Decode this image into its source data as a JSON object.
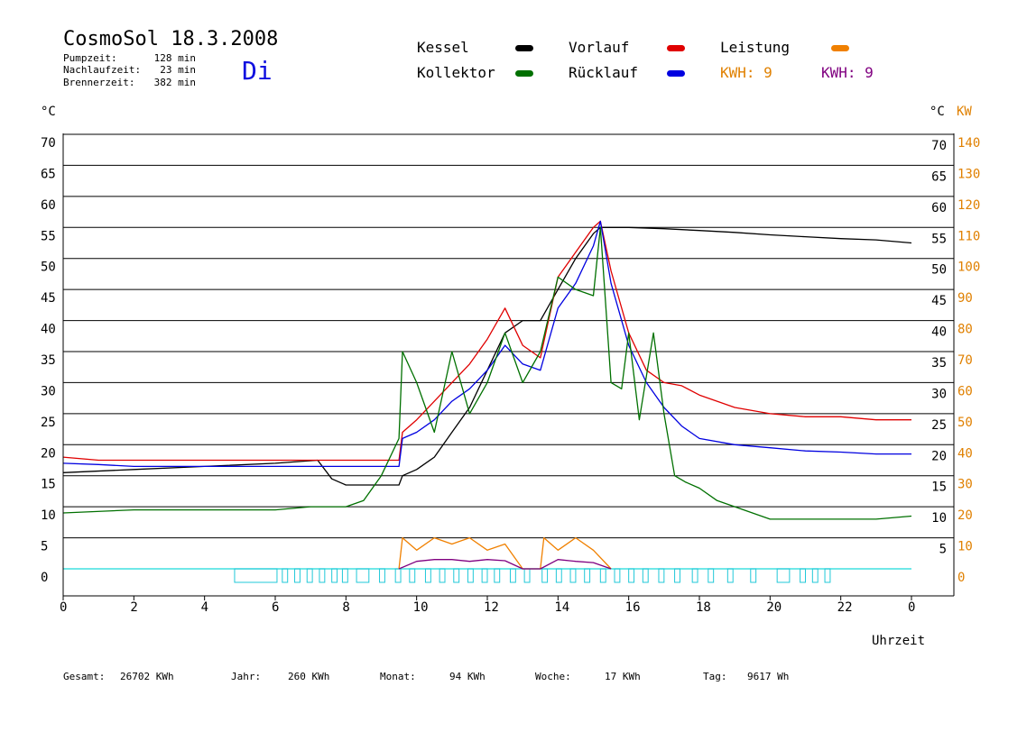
{
  "header": {
    "title": "CosmoSol 18.3.2008",
    "day": "Di",
    "stats": [
      {
        "label": "Pumpzeit:",
        "value": "128 min"
      },
      {
        "label": "Nachlaufzeit:",
        "value": "23 min"
      },
      {
        "label": "Brennerzeit:",
        "value": "382 min"
      }
    ]
  },
  "legend": [
    {
      "label": "Kessel",
      "color": "#000000"
    },
    {
      "label": "Vorlauf",
      "color": "#e00000"
    },
    {
      "label": "Leistung",
      "color": "#f08000"
    },
    {
      "label": "Kollektor",
      "color": "#007000"
    },
    {
      "label": "Rücklauf",
      "color": "#0000e0"
    }
  ],
  "kwh": [
    {
      "text": "KWH: 9",
      "color": "#e08000"
    },
    {
      "text": "KWH: 9",
      "color": "#800080"
    }
  ],
  "footer": [
    {
      "label": "Gesamt:",
      "value": "26702 KWh"
    },
    {
      "label": "Jahr:",
      "value": "260 KWh"
    },
    {
      "label": "Monat:",
      "value": "94 KWh"
    },
    {
      "label": "Woche:",
      "value": "17 KWh"
    },
    {
      "label": "Tag:",
      "value": "9617 Wh"
    }
  ],
  "chart_data": {
    "type": "line",
    "xlabel": "Uhrzeit",
    "ylabel_left": "°C",
    "ylabel_right_c": "°C",
    "ylabel_right_kw": "KW",
    "x_ticks": [
      "0",
      "2",
      "4",
      "6",
      "8",
      "10",
      "12",
      "14",
      "16",
      "18",
      "20",
      "22",
      "0"
    ],
    "y_left_ticks": [
      "0",
      "5",
      "10",
      "15",
      "20",
      "25",
      "30",
      "35",
      "40",
      "45",
      "50",
      "55",
      "60",
      "65",
      "70"
    ],
    "y_right_c_ticks": [
      "5",
      "10",
      "15",
      "20",
      "25",
      "30",
      "35",
      "40",
      "45",
      "50",
      "55",
      "60",
      "65",
      "70"
    ],
    "y_right_kw_ticks": [
      "0",
      "10",
      "20",
      "30",
      "40",
      "50",
      "60",
      "70",
      "80",
      "90",
      "100",
      "110",
      "120",
      "130",
      "140"
    ],
    "xlim": [
      0,
      24
    ],
    "ylim": [
      0,
      70
    ],
    "grid": true,
    "series": [
      {
        "name": "Kessel",
        "color": "#000000",
        "x": [
          0,
          2,
          4,
          6,
          7.2,
          7.6,
          8,
          9,
          9.5,
          9.6,
          10,
          10.5,
          11,
          11.5,
          12,
          12.5,
          13,
          13.5,
          14,
          14.5,
          15,
          15.2,
          15.5,
          16,
          17,
          18,
          19,
          20,
          21,
          22,
          23,
          24
        ],
        "y": [
          15.5,
          16,
          16.5,
          17,
          17.5,
          14.5,
          13.5,
          13.5,
          13.5,
          15,
          16,
          18,
          22,
          26,
          32,
          38,
          40,
          40,
          45,
          50,
          54,
          55,
          55,
          55,
          54.8,
          54.5,
          54.2,
          53.8,
          53.5,
          53.2,
          53,
          52.5
        ]
      },
      {
        "name": "Vorlauf",
        "color": "#e00000",
        "x": [
          0,
          1,
          2,
          4,
          6,
          8,
          9.5,
          9.6,
          10,
          10.5,
          11,
          11.5,
          12,
          12.5,
          13,
          13.5,
          14,
          14.5,
          15,
          15.2,
          15.5,
          16,
          16.5,
          17,
          17.5,
          18,
          19,
          20,
          21,
          22,
          23,
          24
        ],
        "y": [
          18,
          17.5,
          17.5,
          17.5,
          17.5,
          17.5,
          17.5,
          22,
          24,
          27,
          30,
          33,
          37,
          42,
          36,
          34,
          47,
          51,
          55,
          56,
          48,
          38,
          32,
          30,
          29.5,
          28,
          26,
          25,
          24.5,
          24.5,
          24,
          24
        ]
      },
      {
        "name": "Rücklauf",
        "color": "#0000e0",
        "x": [
          0,
          1,
          2,
          4,
          6,
          8,
          9.5,
          9.6,
          10,
          10.5,
          11,
          11.5,
          12,
          12.5,
          13,
          13.5,
          14,
          14.5,
          15,
          15.2,
          15.5,
          16,
          16.5,
          17,
          17.5,
          18,
          19,
          20,
          21,
          22,
          23,
          24
        ],
        "y": [
          17,
          16.8,
          16.5,
          16.5,
          16.5,
          16.5,
          16.5,
          21,
          22,
          24,
          27,
          29,
          32,
          36,
          33,
          32,
          42,
          46,
          52,
          56,
          46,
          36,
          30,
          26,
          23,
          21,
          20,
          19.5,
          19,
          18.8,
          18.5,
          18.5
        ]
      },
      {
        "name": "Kollektor",
        "color": "#007000",
        "x": [
          0,
          2,
          4,
          6,
          7,
          8,
          8.5,
          9,
          9.5,
          9.6,
          10,
          10.5,
          11,
          11.5,
          12,
          12.5,
          13,
          13.5,
          14,
          14.5,
          15,
          15.2,
          15.5,
          15.8,
          16,
          16.3,
          16.7,
          17,
          17.3,
          17.6,
          18,
          18.5,
          19,
          20,
          21,
          22,
          23,
          24
        ],
        "y": [
          9,
          9.5,
          9.5,
          9.5,
          10,
          10,
          11,
          15,
          21,
          35,
          30,
          22,
          35,
          25,
          30,
          38,
          30,
          35,
          47,
          45,
          44,
          55,
          30,
          29,
          38,
          24,
          38,
          25,
          15,
          14,
          13,
          11,
          10,
          8,
          8,
          8,
          8,
          8.5
        ]
      },
      {
        "name": "Leistung",
        "color": "#f08000",
        "x": [
          9.5,
          9.6,
          10,
          10.5,
          11,
          11.5,
          12,
          12.5,
          13,
          13.5,
          13.6,
          14,
          14.5,
          15,
          15.5
        ],
        "y": [
          0,
          5,
          3,
          5,
          4,
          5,
          3,
          4,
          0,
          0,
          5,
          3,
          5,
          3,
          0
        ]
      },
      {
        "name": "Leistung-KWH",
        "color": "#800080",
        "x": [
          9.5,
          10,
          10.5,
          11,
          11.5,
          12,
          12.5,
          13,
          13.5,
          14,
          14.5,
          15,
          15.5
        ],
        "y": [
          0,
          1.2,
          1.5,
          1.5,
          1.2,
          1.5,
          1.3,
          0,
          0,
          1.5,
          1.2,
          1,
          0
        ]
      }
    ],
    "pump_intervals": [
      [
        4.85,
        6.05
      ],
      [
        6.2,
        6.35
      ],
      [
        6.55,
        6.7
      ],
      [
        6.9,
        7.05
      ],
      [
        7.25,
        7.4
      ],
      [
        7.6,
        7.75
      ],
      [
        7.9,
        8.05
      ],
      [
        8.3,
        8.65
      ],
      [
        8.95,
        9.1
      ],
      [
        9.4,
        9.55
      ],
      [
        9.8,
        9.95
      ],
      [
        10.25,
        10.4
      ],
      [
        10.65,
        10.8
      ],
      [
        11.05,
        11.2
      ],
      [
        11.45,
        11.6
      ],
      [
        11.85,
        12
      ],
      [
        12.2,
        12.35
      ],
      [
        12.65,
        12.8
      ],
      [
        13.05,
        13.2
      ],
      [
        13.55,
        13.7
      ],
      [
        13.95,
        14.1
      ],
      [
        14.35,
        14.5
      ],
      [
        14.75,
        14.9
      ],
      [
        15.2,
        15.35
      ],
      [
        15.6,
        15.75
      ],
      [
        16.0,
        16.15
      ],
      [
        16.4,
        16.55
      ],
      [
        16.85,
        17.0
      ],
      [
        17.3,
        17.45
      ],
      [
        17.8,
        17.95
      ],
      [
        18.25,
        18.4
      ],
      [
        18.8,
        18.95
      ],
      [
        19.45,
        19.6
      ],
      [
        20.2,
        20.55
      ],
      [
        20.85,
        21.0
      ],
      [
        21.2,
        21.35
      ],
      [
        21.55,
        21.7
      ]
    ]
  }
}
